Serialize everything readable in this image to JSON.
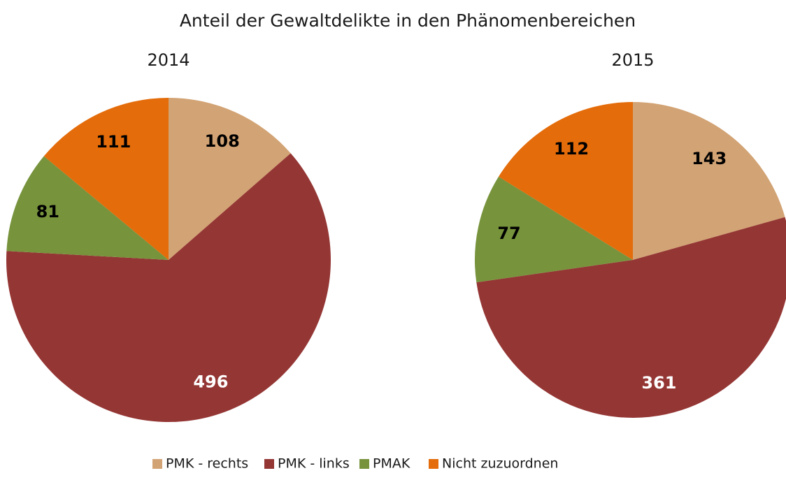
{
  "title": "Anteil der Gewaltdelikte in den Phänomenbereichen",
  "chart_data": [
    {
      "type": "pie",
      "title": "2014",
      "categories": [
        "PMK - rechts",
        "PMK - links",
        "PMAK",
        "Nicht zuzuordnen"
      ],
      "values": [
        108,
        496,
        81,
        111
      ],
      "colors": [
        "#d2a374",
        "#943634",
        "#77933c",
        "#e46c0a"
      ]
    },
    {
      "type": "pie",
      "title": "2015",
      "categories": [
        "PMK - rechts",
        "PMK - links",
        "PMAK",
        "Nicht zuzuordnen"
      ],
      "values": [
        143,
        361,
        77,
        112
      ],
      "colors": [
        "#d2a374",
        "#943634",
        "#77933c",
        "#e46c0a"
      ]
    }
  ]
}
